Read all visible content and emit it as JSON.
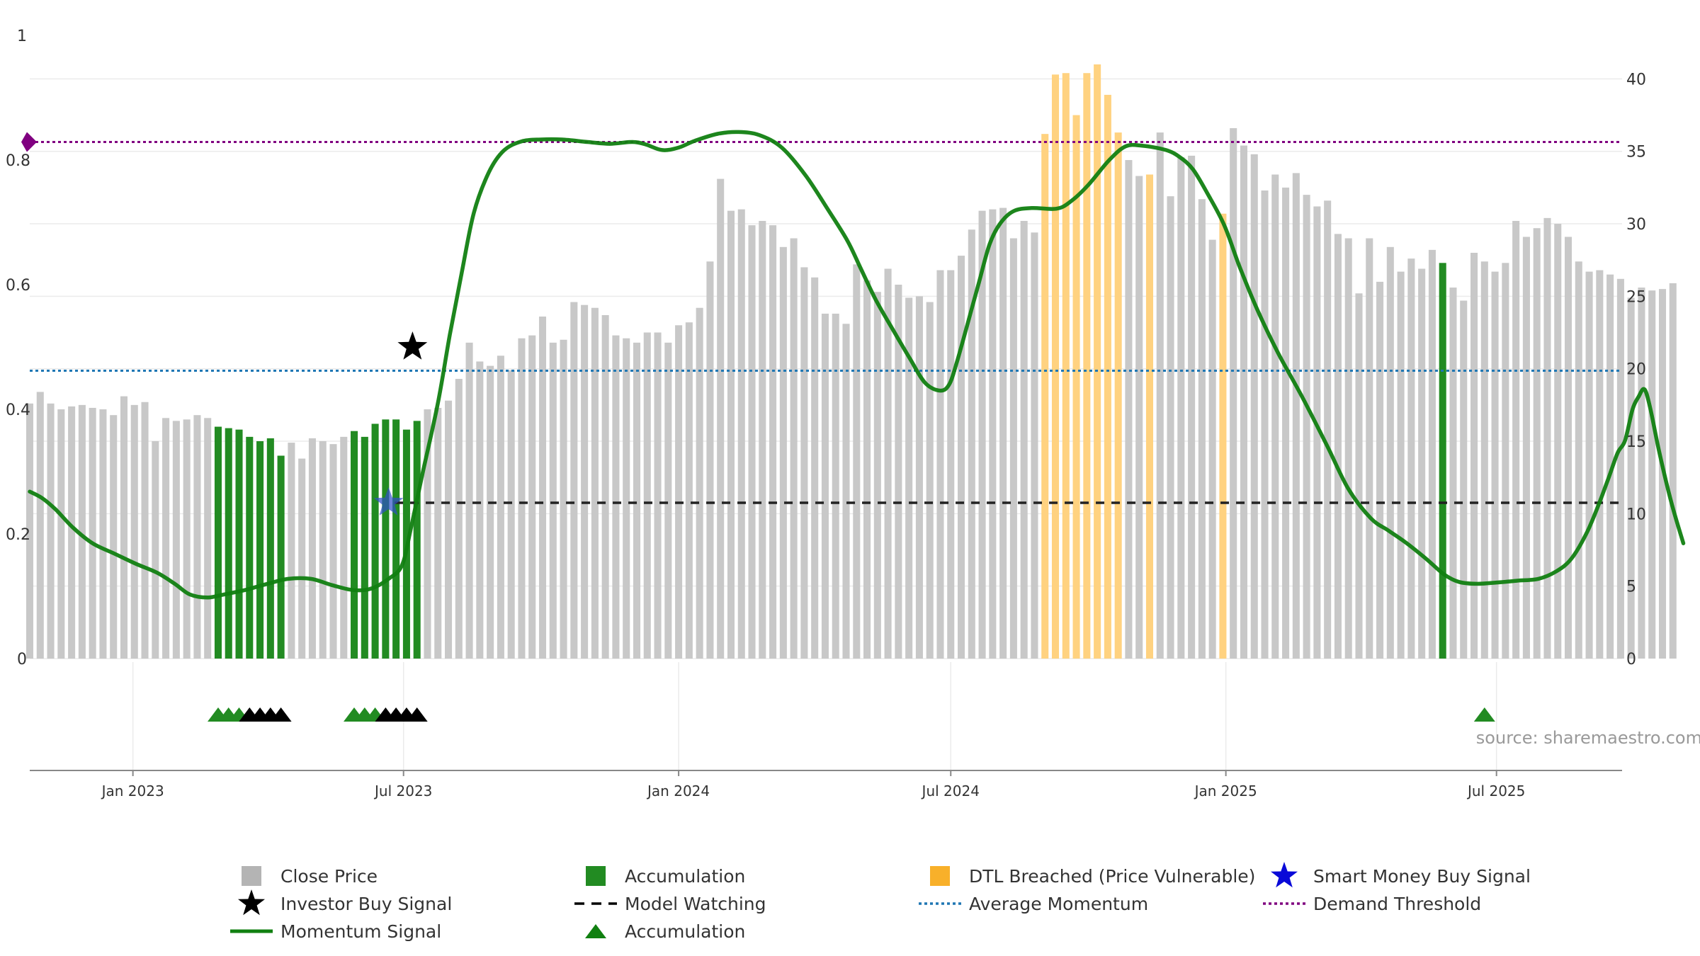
{
  "chart_data": {
    "type": "bar",
    "source": "source: sharemaestro.com",
    "left_axis": {
      "ticks": [
        "0",
        "0.2",
        "0.4",
        "0.6",
        "0.8",
        "1"
      ],
      "ylim": [
        0,
        1
      ]
    },
    "right_axis": {
      "ticks": [
        "0",
        "5",
        "10",
        "15",
        "20",
        "25",
        "30",
        "35",
        "40"
      ],
      "ylim": [
        0,
        43
      ]
    },
    "x_start": "2022-10-24",
    "x_end": "2025-09-23",
    "x_ticks": [
      {
        "label": "Jan 2023",
        "date": "2023-01-01"
      },
      {
        "label": "Jul 2023",
        "date": "2023-07-01"
      },
      {
        "label": "Jan 2024",
        "date": "2024-01-01"
      },
      {
        "label": "Jul 2024",
        "date": "2024-07-01"
      },
      {
        "label": "Jan 2025",
        "date": "2025-01-01"
      },
      {
        "label": "Jul 2025",
        "date": "2025-07-01"
      }
    ],
    "grid": true,
    "legend_position": "bottom",
    "series": [
      {
        "name": "Close Price",
        "kind": "bar",
        "axis": "right",
        "start_date": "2022-10-24",
        "interval_days": 7,
        "colors": {
          "neutral": "#c8c8c8",
          "accumulation": "#228b22",
          "dtl": "#ffd280"
        },
        "values": [
          17.6,
          18.4,
          17.6,
          17.2,
          17.4,
          17.5,
          17.3,
          17.2,
          16.8,
          18.1,
          17.5,
          17.7,
          15.0,
          16.6,
          16.4,
          16.5,
          16.8,
          16.6,
          16.0,
          15.9,
          15.8,
          15.3,
          15.0,
          15.2,
          14.0,
          14.9,
          13.8,
          15.2,
          15.0,
          14.8,
          15.3,
          15.7,
          15.3,
          16.2,
          16.5,
          16.5,
          15.8,
          16.4,
          17.2,
          17.3,
          17.8,
          19.3,
          21.8,
          20.5,
          20.2,
          20.9,
          19.9,
          22.1,
          22.3,
          23.6,
          21.8,
          22.0,
          24.6,
          24.4,
          24.2,
          23.7,
          22.3,
          22.1,
          21.8,
          22.5,
          22.5,
          21.8,
          23.0,
          23.2,
          24.2,
          27.4,
          33.1,
          30.9,
          31.0,
          29.9,
          30.2,
          29.9,
          28.4,
          29.0,
          27.0,
          26.3,
          23.8,
          23.8,
          23.1,
          27.2,
          26.1,
          25.3,
          26.9,
          25.8,
          24.9,
          25.0,
          24.6,
          26.8,
          26.8,
          27.8,
          29.6,
          30.9,
          31.0,
          31.1,
          29.0,
          30.2,
          29.4,
          36.2,
          40.3,
          40.4,
          37.5,
          40.4,
          41.0,
          38.9,
          36.3,
          34.4,
          33.3,
          33.4,
          36.3,
          31.9,
          34.6,
          34.7,
          31.7,
          28.9,
          30.7,
          36.6,
          35.4,
          34.8,
          32.3,
          33.4,
          32.5,
          33.5,
          32.0,
          31.2,
          31.6,
          29.3,
          29.0,
          25.2,
          29.0,
          26.0,
          28.4,
          26.7,
          27.6,
          26.9,
          28.2,
          27.3,
          25.6,
          24.7,
          28.0,
          27.4,
          26.7,
          27.3,
          30.2,
          29.1,
          29.7,
          30.4,
          30.0,
          29.1,
          27.4,
          26.7,
          26.8,
          26.5,
          26.2,
          24.9,
          25.6,
          25.4,
          25.5,
          25.9
        ],
        "accumulation_ranges": [
          [
            18,
            24
          ],
          [
            31,
            37
          ],
          [
            135,
            135
          ]
        ],
        "dtl_ranges": [
          [
            97,
            104
          ],
          [
            107,
            107
          ],
          [
            114,
            114
          ]
        ]
      },
      {
        "name": "Momentum Signal",
        "kind": "line",
        "axis": "left",
        "color": "#118011",
        "points": [
          [
            "2022-10-24",
            0.268
          ],
          [
            "2022-11-01",
            0.258
          ],
          [
            "2022-11-10",
            0.24
          ],
          [
            "2022-11-22",
            0.21
          ],
          [
            "2022-12-05",
            0.185
          ],
          [
            "2022-12-20",
            0.168
          ],
          [
            "2023-01-03",
            0.152
          ],
          [
            "2023-01-17",
            0.138
          ],
          [
            "2023-01-29",
            0.12
          ],
          [
            "2023-02-08",
            0.103
          ],
          [
            "2023-02-20",
            0.098
          ],
          [
            "2023-03-03",
            0.103
          ],
          [
            "2023-03-17",
            0.11
          ],
          [
            "2023-04-01",
            0.12
          ],
          [
            "2023-04-15",
            0.128
          ],
          [
            "2023-04-30",
            0.128
          ],
          [
            "2023-05-14",
            0.118
          ],
          [
            "2023-05-28",
            0.11
          ],
          [
            "2023-06-09",
            0.112
          ],
          [
            "2023-06-21",
            0.128
          ],
          [
            "2023-06-30",
            0.15
          ],
          [
            "2023-07-06",
            0.21
          ],
          [
            "2023-07-14",
            0.3
          ],
          [
            "2023-07-24",
            0.41
          ],
          [
            "2023-08-01",
            0.52
          ],
          [
            "2023-08-09",
            0.62
          ],
          [
            "2023-08-17",
            0.715
          ],
          [
            "2023-08-27",
            0.78
          ],
          [
            "2023-09-06",
            0.815
          ],
          [
            "2023-09-18",
            0.83
          ],
          [
            "2023-10-01",
            0.833
          ],
          [
            "2023-10-15",
            0.833
          ],
          [
            "2023-11-01",
            0.829
          ],
          [
            "2023-11-16",
            0.826
          ],
          [
            "2023-12-01",
            0.829
          ],
          [
            "2023-12-10",
            0.825
          ],
          [
            "2023-12-21",
            0.816
          ],
          [
            "2024-01-01",
            0.82
          ],
          [
            "2024-01-12",
            0.831
          ],
          [
            "2024-01-27",
            0.842
          ],
          [
            "2024-02-10",
            0.845
          ],
          [
            "2024-02-24",
            0.84
          ],
          [
            "2024-03-10",
            0.82
          ],
          [
            "2024-03-26",
            0.775
          ],
          [
            "2024-04-10",
            0.72
          ],
          [
            "2024-04-23",
            0.67
          ],
          [
            "2024-05-02",
            0.625
          ],
          [
            "2024-05-12",
            0.575
          ],
          [
            "2024-05-24",
            0.525
          ],
          [
            "2024-06-04",
            0.48
          ],
          [
            "2024-06-14",
            0.442
          ],
          [
            "2024-06-24",
            0.43
          ],
          [
            "2024-06-30",
            0.44
          ],
          [
            "2024-07-05",
            0.475
          ],
          [
            "2024-07-12",
            0.535
          ],
          [
            "2024-07-20",
            0.605
          ],
          [
            "2024-07-27",
            0.665
          ],
          [
            "2024-08-03",
            0.698
          ],
          [
            "2024-08-12",
            0.718
          ],
          [
            "2024-08-24",
            0.723
          ],
          [
            "2024-09-10",
            0.722
          ],
          [
            "2024-09-20",
            0.735
          ],
          [
            "2024-10-01",
            0.76
          ],
          [
            "2024-10-15",
            0.8
          ],
          [
            "2024-10-26",
            0.822
          ],
          [
            "2024-11-06",
            0.823
          ],
          [
            "2024-11-22",
            0.816
          ],
          [
            "2024-12-01",
            0.805
          ],
          [
            "2024-12-10",
            0.785
          ],
          [
            "2024-12-20",
            0.745
          ],
          [
            "2024-12-31",
            0.695
          ],
          [
            "2025-01-10",
            0.63
          ],
          [
            "2025-01-22",
            0.56
          ],
          [
            "2025-02-05",
            0.49
          ],
          [
            "2025-02-21",
            0.42
          ],
          [
            "2025-03-10",
            0.34
          ],
          [
            "2025-03-24",
            0.272
          ],
          [
            "2025-04-08",
            0.225
          ],
          [
            "2025-04-20",
            0.205
          ],
          [
            "2025-05-02",
            0.185
          ],
          [
            "2025-05-15",
            0.16
          ],
          [
            "2025-05-27",
            0.135
          ],
          [
            "2025-06-06",
            0.123
          ],
          [
            "2025-06-18",
            0.12
          ],
          [
            "2025-07-01",
            0.122
          ],
          [
            "2025-07-15",
            0.125
          ],
          [
            "2025-07-29",
            0.128
          ],
          [
            "2025-08-10",
            0.14
          ],
          [
            "2025-08-20",
            0.16
          ],
          [
            "2025-08-30",
            0.2
          ],
          [
            "2025-09-07",
            0.245
          ],
          [
            "2025-09-14",
            0.29
          ],
          [
            "2025-09-20",
            0.33
          ],
          [
            "2025-09-25",
            0.35
          ],
          [
            "2025-09-30",
            0.4
          ],
          [
            "2025-10-04",
            0.42
          ],
          [
            "2025-10-08",
            0.432
          ],
          [
            "2025-10-12",
            0.4
          ],
          [
            "2025-10-18",
            0.33
          ],
          [
            "2025-10-26",
            0.25
          ],
          [
            "2025-11-03",
            0.185
          ]
        ]
      },
      {
        "name": "Model Watching",
        "kind": "hline",
        "axis": "left",
        "value": 0.25,
        "color": "#222222",
        "start_date": "2023-06-25"
      },
      {
        "name": "Average Momentum",
        "kind": "hline",
        "axis": "left",
        "value": 0.462,
        "color": "#1f77b4"
      },
      {
        "name": "Demand Threshold",
        "kind": "hline",
        "axis": "left",
        "value": 0.829,
        "color": "#800080"
      },
      {
        "name": "Investor Buy Signal",
        "kind": "marker",
        "axis": "left",
        "date": "2023-07-07",
        "value": 0.5,
        "color": "#000000"
      },
      {
        "name": "Smart Money Buy Signal",
        "kind": "marker",
        "axis": "left",
        "date": "2023-06-21",
        "value": 0.25,
        "color": "#3050c8"
      }
    ],
    "accumulation_triangles": [
      {
        "date": "2023-02-27",
        "color": "#228b22"
      },
      {
        "date": "2023-03-06",
        "color": "#228b22"
      },
      {
        "date": "2023-03-13",
        "color": "#228b22"
      },
      {
        "date": "2023-03-20",
        "color": "#000000"
      },
      {
        "date": "2023-03-27",
        "color": "#000000"
      },
      {
        "date": "2023-04-03",
        "color": "#000000"
      },
      {
        "date": "2023-04-10",
        "color": "#000000"
      },
      {
        "date": "2023-05-29",
        "color": "#228b22"
      },
      {
        "date": "2023-06-05",
        "color": "#228b22"
      },
      {
        "date": "2023-06-12",
        "color": "#228b22"
      },
      {
        "date": "2023-06-19",
        "color": "#000000"
      },
      {
        "date": "2023-06-26",
        "color": "#000000"
      },
      {
        "date": "2023-07-03",
        "color": "#000000"
      },
      {
        "date": "2023-07-10",
        "color": "#000000"
      },
      {
        "date": "2025-06-23",
        "color": "#228b22"
      }
    ],
    "legend": [
      {
        "label": "Close Price",
        "swatch": "square",
        "color": "#b4b4b4"
      },
      {
        "label": "Accumulation",
        "swatch": "square",
        "color": "#228b22"
      },
      {
        "label": "DTL Breached (Price Vulnerable)",
        "swatch": "square",
        "color": "#f8b02a"
      },
      {
        "label": "Smart Money Buy Signal",
        "swatch": "star",
        "color": "#0a0ad8"
      },
      {
        "label": "Investor Buy Signal",
        "swatch": "star",
        "color": "#000000"
      },
      {
        "label": "Model Watching",
        "swatch": "dashed",
        "color": "#000000"
      },
      {
        "label": "Average Momentum",
        "swatch": "dotted",
        "color": "#1f77b4"
      },
      {
        "label": "Demand Threshold",
        "swatch": "dotted",
        "color": "#800080"
      },
      {
        "label": "Momentum Signal",
        "swatch": "line",
        "color": "#118011"
      },
      {
        "label": "Accumulation",
        "swatch": "triangle",
        "color": "#118011"
      }
    ]
  }
}
